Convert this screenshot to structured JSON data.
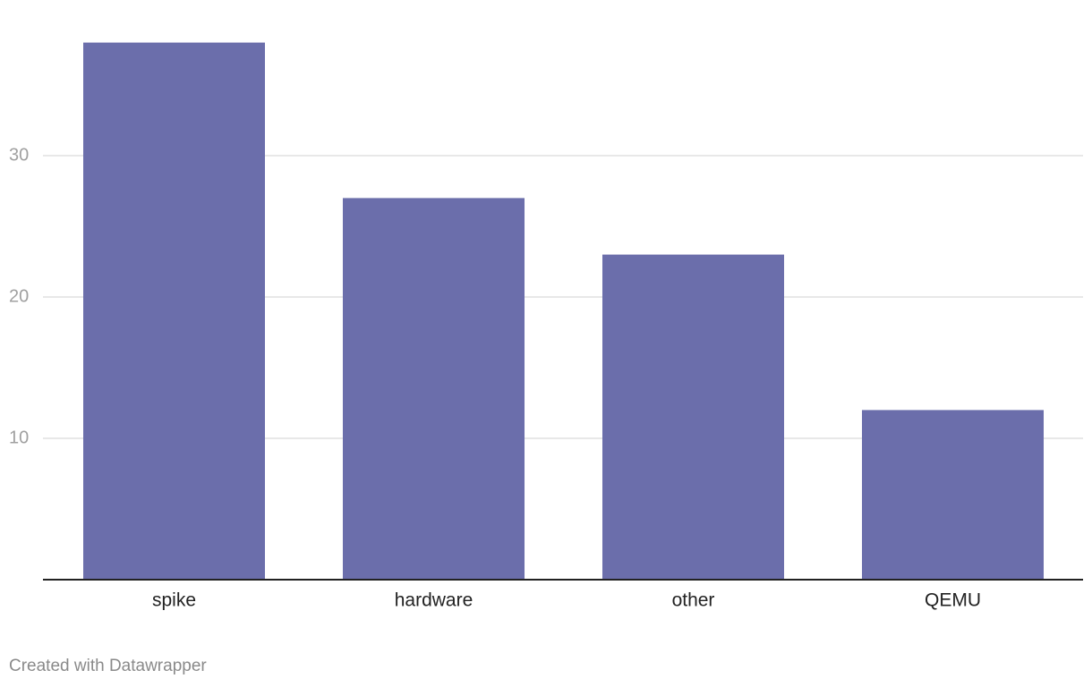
{
  "chart_data": {
    "type": "bar",
    "categories": [
      "spike",
      "hardware",
      "other",
      "QEMU"
    ],
    "values": [
      38,
      27,
      23,
      12
    ],
    "color": "#6b6eab",
    "ylim": [
      0,
      40
    ],
    "yticks": [
      10,
      20,
      30
    ],
    "grid": true
  },
  "footer": {
    "credit": "Created with Datawrapper"
  }
}
